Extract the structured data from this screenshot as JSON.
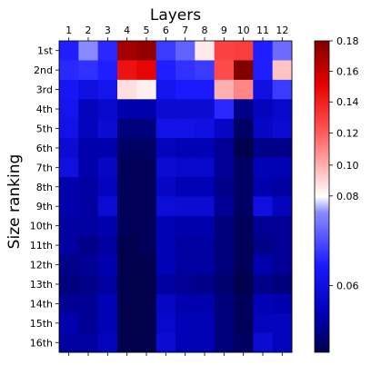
{
  "chart_data": {
    "type": "heatmap",
    "xlabel": "Layers",
    "ylabel": "Size ranking",
    "x_tick_position": "top",
    "columns": [
      "1",
      "2",
      "3",
      "4",
      "5",
      "6",
      "7",
      "8",
      "9",
      "10",
      "11",
      "12"
    ],
    "rows": [
      "1st",
      "2nd",
      "3rd",
      "4th",
      "5th",
      "6th",
      "7th",
      "8th",
      "9th",
      "10th",
      "11th",
      "12th",
      "13th",
      "14th",
      "15th",
      "16th"
    ],
    "colormap": "seismic",
    "colorbar": {
      "ticks": [
        0.06,
        0.08,
        0.1,
        0.12,
        0.14,
        0.16,
        0.18
      ],
      "tick_labels": [
        "0.06",
        "0.08",
        "0.10",
        "0.12",
        "0.14",
        "0.16",
        "0.18"
      ],
      "range": [
        0.045,
        0.182
      ],
      "scale": "nonlinear"
    },
    "values": [
      [
        0.065,
        0.076,
        0.066,
        0.17,
        0.175,
        0.068,
        0.072,
        0.085,
        0.128,
        0.13,
        0.065,
        0.073
      ],
      [
        0.066,
        0.067,
        0.065,
        0.145,
        0.15,
        0.065,
        0.067,
        0.068,
        0.125,
        0.182,
        0.065,
        0.095
      ],
      [
        0.063,
        0.06,
        0.062,
        0.088,
        0.084,
        0.062,
        0.064,
        0.064,
        0.1,
        0.11,
        0.06,
        0.068
      ],
      [
        0.062,
        0.055,
        0.057,
        0.053,
        0.053,
        0.058,
        0.058,
        0.058,
        0.066,
        0.05,
        0.055,
        0.057
      ],
      [
        0.061,
        0.055,
        0.058,
        0.049,
        0.049,
        0.061,
        0.061,
        0.06,
        0.056,
        0.047,
        0.056,
        0.058
      ],
      [
        0.058,
        0.053,
        0.053,
        0.047,
        0.047,
        0.055,
        0.054,
        0.054,
        0.051,
        0.045,
        0.05,
        0.05
      ],
      [
        0.06,
        0.053,
        0.056,
        0.046,
        0.046,
        0.058,
        0.057,
        0.057,
        0.051,
        0.047,
        0.054,
        0.054
      ],
      [
        0.053,
        0.052,
        0.055,
        0.046,
        0.046,
        0.056,
        0.054,
        0.054,
        0.05,
        0.047,
        0.053,
        0.052
      ],
      [
        0.053,
        0.052,
        0.058,
        0.046,
        0.046,
        0.059,
        0.058,
        0.058,
        0.051,
        0.047,
        0.06,
        0.055
      ],
      [
        0.052,
        0.052,
        0.053,
        0.046,
        0.046,
        0.054,
        0.053,
        0.053,
        0.049,
        0.046,
        0.051,
        0.051
      ],
      [
        0.052,
        0.05,
        0.052,
        0.045,
        0.046,
        0.054,
        0.052,
        0.052,
        0.049,
        0.046,
        0.05,
        0.051
      ],
      [
        0.05,
        0.051,
        0.053,
        0.045,
        0.045,
        0.054,
        0.052,
        0.052,
        0.049,
        0.046,
        0.053,
        0.051
      ],
      [
        0.049,
        0.05,
        0.052,
        0.044,
        0.045,
        0.052,
        0.051,
        0.05,
        0.048,
        0.044,
        0.05,
        0.049
      ],
      [
        0.051,
        0.051,
        0.054,
        0.045,
        0.045,
        0.056,
        0.053,
        0.053,
        0.049,
        0.046,
        0.054,
        0.053
      ],
      [
        0.053,
        0.051,
        0.054,
        0.045,
        0.045,
        0.057,
        0.054,
        0.054,
        0.049,
        0.046,
        0.055,
        0.055
      ],
      [
        0.052,
        0.052,
        0.055,
        0.045,
        0.045,
        0.058,
        0.054,
        0.054,
        0.049,
        0.047,
        0.058,
        0.055
      ]
    ]
  }
}
